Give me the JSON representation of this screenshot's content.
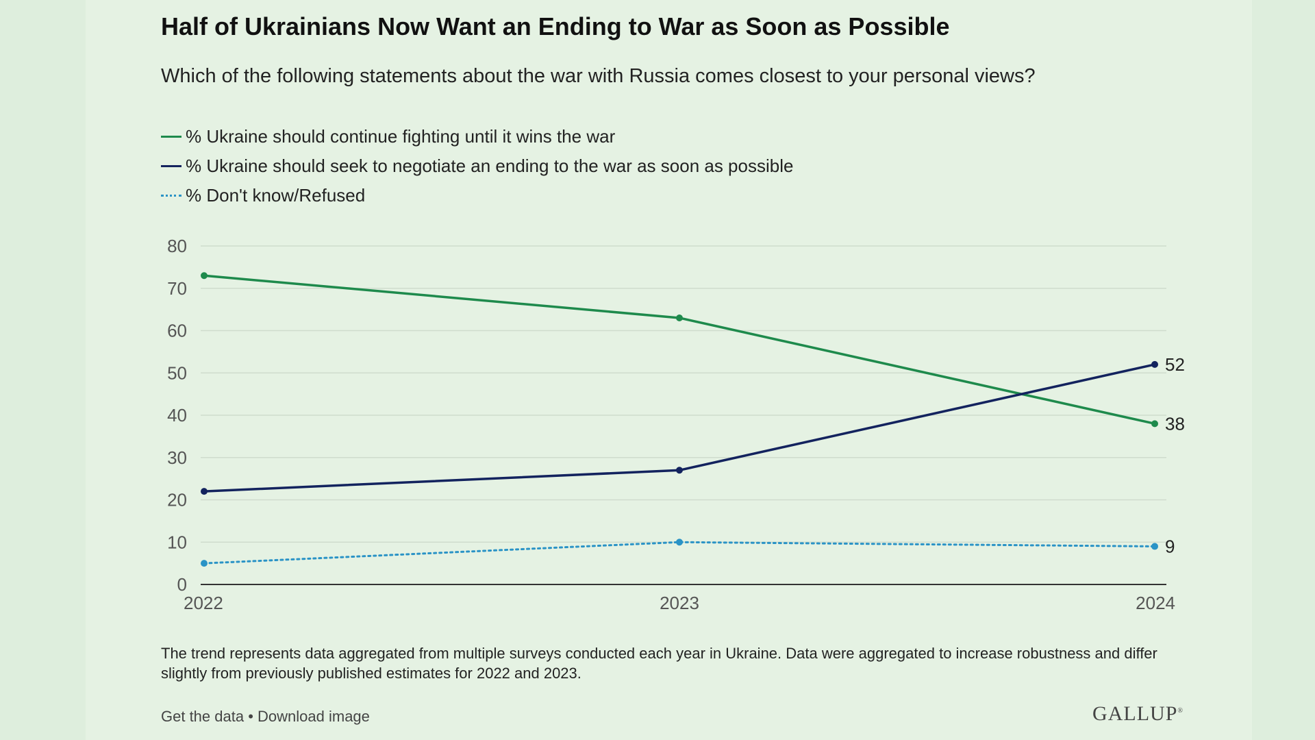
{
  "title": "Half of Ukrainians Now Want an Ending to War as Soon as Possible",
  "subtitle": "Which of the following statements about the war with Russia comes closest to your personal views?",
  "colors": {
    "fight": "#1e8a4c",
    "negotiate": "#13235e",
    "dontknow": "#2a93c6",
    "grid": "#cfdccd",
    "axis": "#333333",
    "tick": "#555555"
  },
  "chart_data": {
    "type": "line",
    "title": "Half of Ukrainians Now Want an Ending to War as Soon as Possible",
    "xlabel": "",
    "ylabel": "",
    "x": [
      "2022",
      "2023",
      "2024"
    ],
    "ylim": [
      0,
      80
    ],
    "yticks": [
      0,
      10,
      20,
      30,
      40,
      50,
      60,
      70,
      80
    ],
    "grid": true,
    "legend": "top-left",
    "series": [
      {
        "name": "% Ukraine should continue fighting until it wins the war",
        "values": [
          73,
          63,
          38
        ],
        "style": "solid",
        "color_key": "fight",
        "end_label": "38"
      },
      {
        "name": "% Ukraine should seek to negotiate an ending to the war as soon as possible",
        "values": [
          22,
          27,
          52
        ],
        "style": "solid",
        "color_key": "negotiate",
        "end_label": "52"
      },
      {
        "name": "% Don't know/Refused",
        "values": [
          5,
          10,
          9
        ],
        "style": "dotted",
        "color_key": "dontknow",
        "end_label": "9"
      }
    ]
  },
  "note": "The trend represents data aggregated from multiple surveys conducted each year in Ukraine. Data were aggregated to increase robustness and differ slightly from previously published estimates for 2022 and 2023.",
  "footer": {
    "get_data": "Get the data",
    "separator": " • ",
    "download": "Download image"
  },
  "logo": "GALLUP"
}
